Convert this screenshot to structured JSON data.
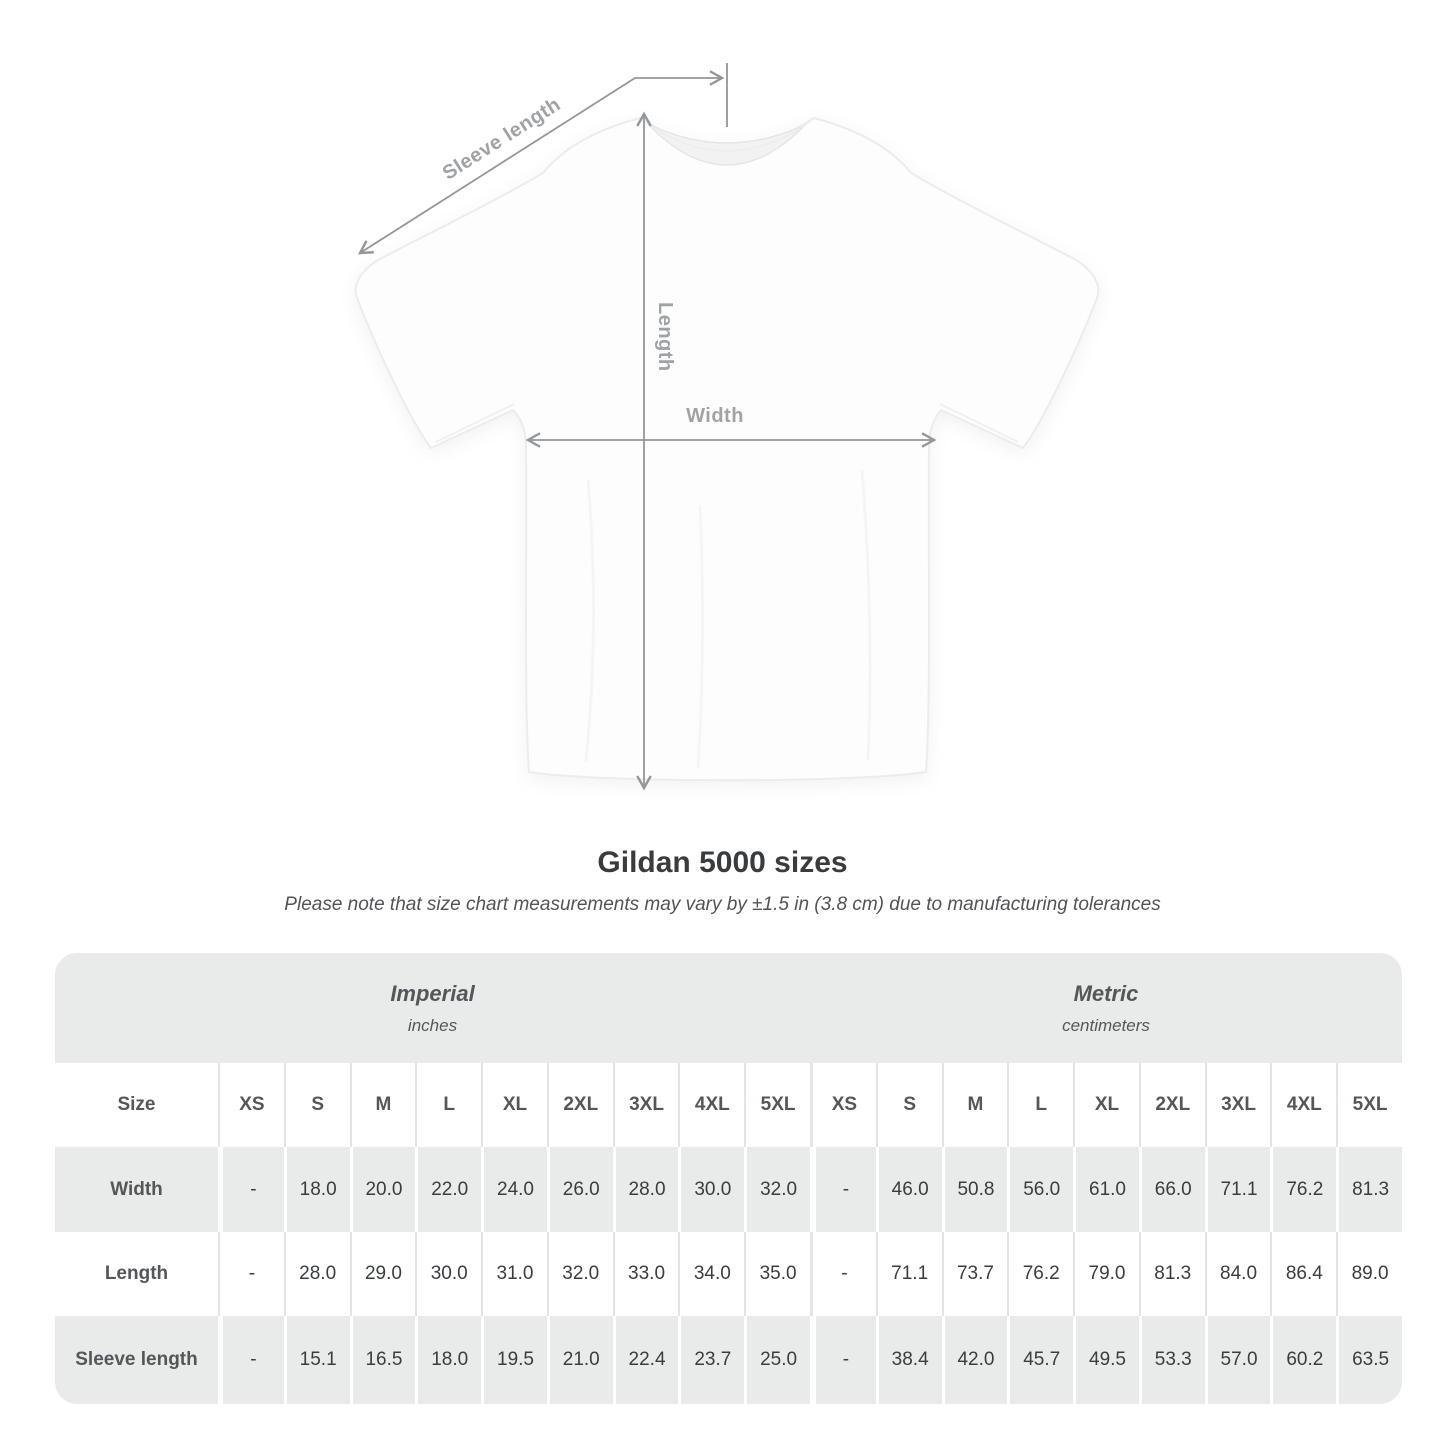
{
  "diagram": {
    "sleeve_label": "Sleeve length",
    "length_label": "Length",
    "width_label": "Width"
  },
  "title": "Gildan 5000 sizes",
  "subtitle": "Please note that size chart measurements may vary by ±1.5 in (3.8 cm) due to manufacturing tolerances",
  "table": {
    "size_header": "Size",
    "unit_groups": [
      {
        "label": "Imperial",
        "sublabel": "inches"
      },
      {
        "label": "Metric",
        "sublabel": "centimeters"
      }
    ],
    "sizes": [
      "XS",
      "S",
      "M",
      "L",
      "XL",
      "2XL",
      "3XL",
      "4XL",
      "5XL"
    ],
    "rows": [
      {
        "label": "Width",
        "imperial": [
          "-",
          "18.0",
          "20.0",
          "22.0",
          "24.0",
          "26.0",
          "28.0",
          "30.0",
          "32.0"
        ],
        "metric": [
          "-",
          "46.0",
          "50.8",
          "56.0",
          "61.0",
          "66.0",
          "71.1",
          "76.2",
          "81.3"
        ]
      },
      {
        "label": "Length",
        "imperial": [
          "-",
          "28.0",
          "29.0",
          "30.0",
          "31.0",
          "32.0",
          "33.0",
          "34.0",
          "35.0"
        ],
        "metric": [
          "-",
          "71.1",
          "73.7",
          "76.2",
          "79.0",
          "81.3",
          "84.0",
          "86.4",
          "89.0"
        ]
      },
      {
        "label": "Sleeve length",
        "imperial": [
          "-",
          "15.1",
          "16.5",
          "18.0",
          "19.5",
          "21.0",
          "22.4",
          "23.7",
          "25.0"
        ],
        "metric": [
          "-",
          "38.4",
          "42.0",
          "45.7",
          "49.5",
          "53.3",
          "57.0",
          "60.2",
          "63.5"
        ]
      }
    ]
  },
  "colors": {
    "table_band": "#e9eaea",
    "value_text": "#3a3d40",
    "header_text": "#54575a",
    "diagram_label": "#a0a3a6",
    "measure_line": "#93979a"
  }
}
